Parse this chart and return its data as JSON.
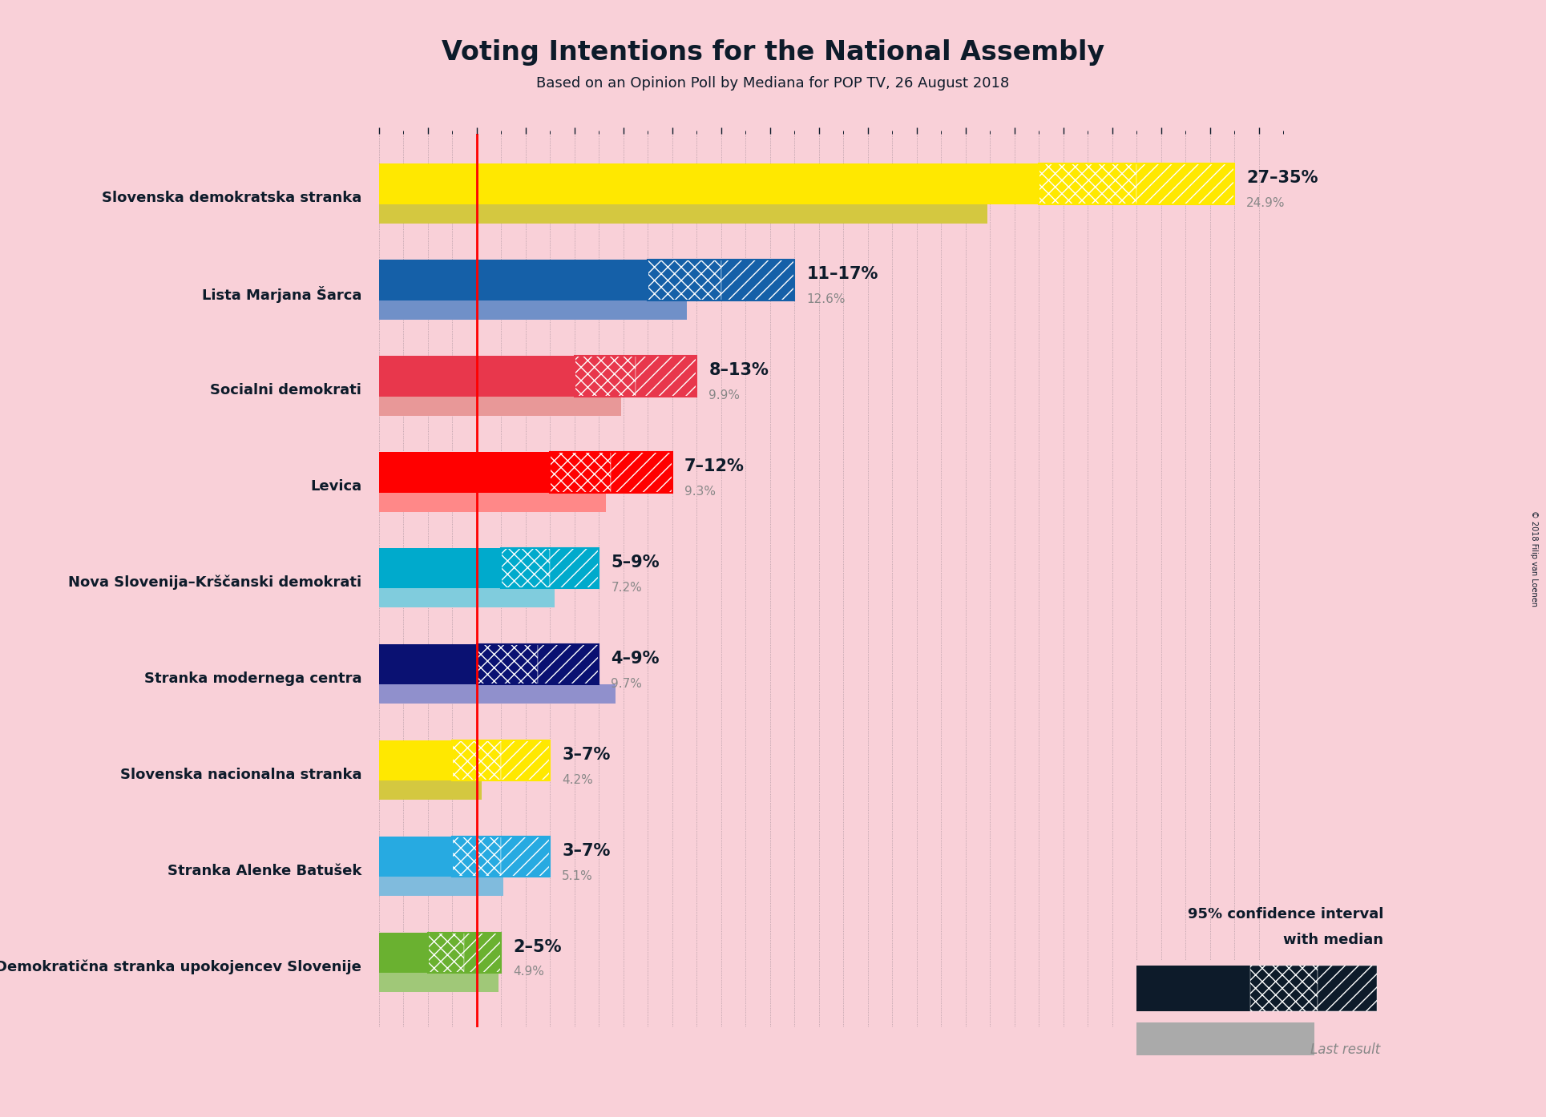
{
  "title": "Voting Intentions for the National Assembly",
  "subtitle": "Based on an Opinion Poll by Mediana for POP TV, 26 August 2018",
  "background_color": "#F9D0D8",
  "parties": [
    {
      "name": "Slovenska demokratska stranka",
      "color": "#FFE800",
      "last_color": "#D4C840",
      "last_result": 24.9,
      "ci_low": 27,
      "median": 31,
      "ci_high": 35,
      "label": "27–35%",
      "last_label": "24.9%"
    },
    {
      "name": "Lista Marjana Šarca",
      "color": "#1560A8",
      "last_color": "#7090C8",
      "last_result": 12.6,
      "ci_low": 11,
      "median": 14,
      "ci_high": 17,
      "label": "11–17%",
      "last_label": "12.6%"
    },
    {
      "name": "Socialni demokrati",
      "color": "#E8374C",
      "last_color": "#E89898",
      "last_result": 9.9,
      "ci_low": 8,
      "median": 10.5,
      "ci_high": 13,
      "label": "8–13%",
      "last_label": "9.9%"
    },
    {
      "name": "Levica",
      "color": "#FF0000",
      "last_color": "#FF8888",
      "last_result": 9.3,
      "ci_low": 7,
      "median": 9.5,
      "ci_high": 12,
      "label": "7–12%",
      "last_label": "9.3%"
    },
    {
      "name": "Nova Slovenija–Krščanski demokrati",
      "color": "#00AACC",
      "last_color": "#80CCDD",
      "last_result": 7.2,
      "ci_low": 5,
      "median": 7,
      "ci_high": 9,
      "label": "5–9%",
      "last_label": "7.2%"
    },
    {
      "name": "Stranka modernega centra",
      "color": "#0A1172",
      "last_color": "#9090CC",
      "last_result": 9.7,
      "ci_low": 4,
      "median": 6.5,
      "ci_high": 9,
      "label": "4–9%",
      "last_label": "9.7%"
    },
    {
      "name": "Slovenska nacionalna stranka",
      "color": "#FFE800",
      "last_color": "#D4C840",
      "last_result": 4.2,
      "ci_low": 3,
      "median": 5,
      "ci_high": 7,
      "label": "3–7%",
      "last_label": "4.2%"
    },
    {
      "name": "Stranka Alenke Batušek",
      "color": "#27AAE1",
      "last_color": "#80BBDD",
      "last_result": 5.1,
      "ci_low": 3,
      "median": 5,
      "ci_high": 7,
      "label": "3–7%",
      "last_label": "5.1%"
    },
    {
      "name": "Demokratična stranka upokojencev Slovenije",
      "color": "#6AB130",
      "last_color": "#A0C878",
      "last_result": 4.9,
      "ci_low": 2,
      "median": 3.5,
      "ci_high": 5,
      "label": "2–5%",
      "last_label": "4.9%"
    }
  ],
  "xlim": [
    0,
    37
  ],
  "red_line_x": 4,
  "dark_navy": "#0D1B2A",
  "gray_text": "#888888",
  "copyright": "© 2018 Filip van Loenen"
}
